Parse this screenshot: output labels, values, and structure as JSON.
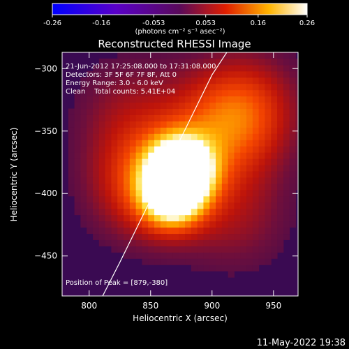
{
  "chart_data": {
    "type": "heatmap",
    "title": "Reconstructed RHESSI Image",
    "xlabel": "Heliocentric X (arcsec)",
    "ylabel": "Heliocentric Y (arcsec)",
    "xlim": [
      778,
      970
    ],
    "ylim": [
      -482,
      -287
    ],
    "xticks": [
      800,
      850,
      900,
      950
    ],
    "yticks": [
      -300,
      -350,
      -400,
      -450
    ],
    "colorbar": {
      "ticks": [
        "-0.26",
        "-0.16",
        "-0.053",
        "0.053",
        "0.16",
        "0.26"
      ],
      "tick_values": [
        -0.26,
        -0.16,
        -0.053,
        0.053,
        0.16,
        0.26
      ],
      "range": [
        -0.26,
        0.26
      ],
      "unit_label": "(photons cm⁻² s⁻¹ asec⁻²)",
      "colormap": "blue-purple-red-yellow-white"
    },
    "annotations": [
      "21-Jun-2012 17:25:08.000 to 17:31:08.000",
      "Detectors: 3F 5F 6F 7F 8F, Att 0",
      "Energy Range: 3.0 - 6.0 keV",
      "Clean    Total counts: 5.41E+04"
    ],
    "peak_label": "Position of Peak = [879,-380]",
    "peak": [
      879,
      -380
    ],
    "limb_curve": {
      "x": [
        811,
        825,
        840,
        855,
        870,
        885,
        900,
        912
      ],
      "y": [
        -482,
        -455,
        -425,
        -395,
        -365,
        -335,
        -305,
        -287
      ]
    },
    "sources": [
      {
        "x": 875,
        "y": -380,
        "intensity": 0.26
      },
      {
        "x": 868,
        "y": -403,
        "intensity": 0.19
      },
      {
        "x": 845,
        "y": -392,
        "intensity": 0.14
      },
      {
        "x": 910,
        "y": -345,
        "intensity": 0.1
      },
      {
        "x": 930,
        "y": -330,
        "intensity": 0.09
      },
      {
        "x": 920,
        "y": -420,
        "intensity": 0.07
      },
      {
        "x": 830,
        "y": -330,
        "intensity": 0.06
      }
    ]
  },
  "timestamp": "11-May-2022 19:38"
}
